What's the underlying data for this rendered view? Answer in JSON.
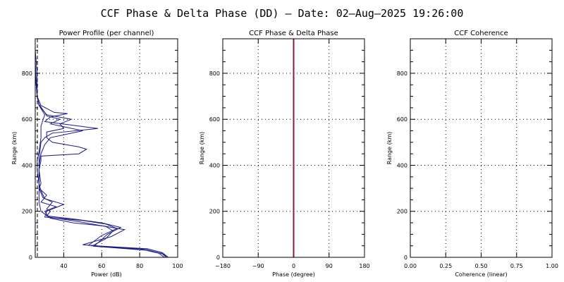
{
  "title": "CCF Phase & Delta Phase (DD) — Date: 02—Aug—2025 19:26:00",
  "colors": {
    "trace": "#1a1a8c",
    "phase_line": "#8b1a3a",
    "grid": "#000000"
  },
  "chart_data": [
    {
      "type": "line",
      "title": "Power Profile (per channel)",
      "xlabel": "Power (dB)",
      "ylabel": "Range (km)",
      "xlim": [
        25,
        100
      ],
      "ylim": [
        0,
        950
      ],
      "xticks": [
        40,
        60,
        80,
        100
      ],
      "yticks": [
        0,
        200,
        400,
        600,
        800
      ],
      "grid": true,
      "series": [
        {
          "values": [
            [
              95,
              0
            ],
            [
              92,
              20
            ],
            [
              85,
              35
            ],
            [
              55,
              50
            ],
            [
              62,
              80
            ],
            [
              66,
              115
            ],
            [
              62,
              135
            ],
            [
              45,
              150
            ],
            [
              33,
              170
            ],
            [
              28,
              200
            ],
            [
              27,
              240
            ],
            [
              27,
              280
            ],
            [
              27,
              320
            ],
            [
              26,
              380
            ],
            [
              26,
              420
            ],
            [
              27,
              460
            ],
            [
              28,
              520
            ],
            [
              28,
              570
            ],
            [
              30,
              620
            ],
            [
              27,
              660
            ],
            [
              26,
              700
            ],
            [
              26,
              800
            ],
            [
              25,
              900
            ],
            [
              25,
              950
            ]
          ]
        },
        {
          "values": [
            [
              93,
              0
            ],
            [
              90,
              18
            ],
            [
              82,
              33
            ],
            [
              50,
              55
            ],
            [
              65,
              90
            ],
            [
              72,
              120
            ],
            [
              58,
              140
            ],
            [
              48,
              155
            ],
            [
              32,
              175
            ],
            [
              30,
              200
            ],
            [
              36,
              220
            ],
            [
              28,
              240
            ],
            [
              31,
              270
            ],
            [
              27,
              300
            ],
            [
              28,
              320
            ],
            [
              27,
              380
            ],
            [
              28,
              420
            ],
            [
              28,
              440
            ],
            [
              48,
              450
            ],
            [
              52,
              470
            ],
            [
              48,
              480
            ],
            [
              34,
              500
            ],
            [
              31,
              520
            ],
            [
              31,
              545
            ],
            [
              40,
              560
            ],
            [
              38,
              580
            ],
            [
              44,
              600
            ],
            [
              31,
              620
            ],
            [
              27,
              660
            ],
            [
              26,
              700
            ],
            [
              25,
              800
            ],
            [
              25,
              950
            ]
          ]
        },
        {
          "values": [
            [
              94,
              0
            ],
            [
              91,
              22
            ],
            [
              84,
              37
            ],
            [
              53,
              52
            ],
            [
              60,
              95
            ],
            [
              68,
              125
            ],
            [
              62,
              145
            ],
            [
              50,
              160
            ],
            [
              30,
              175
            ],
            [
              31,
              200
            ],
            [
              40,
              230
            ],
            [
              30,
              255
            ],
            [
              28,
              290
            ],
            [
              27,
              320
            ],
            [
              27,
              380
            ],
            [
              27,
              430
            ],
            [
              28,
              500
            ],
            [
              30,
              520
            ],
            [
              34,
              540
            ],
            [
              58,
              560
            ],
            [
              44,
              575
            ],
            [
              30,
              590
            ],
            [
              33,
              610
            ],
            [
              42,
              625
            ],
            [
              35,
              630
            ],
            [
              28,
              660
            ],
            [
              26,
              700
            ],
            [
              25,
              850
            ],
            [
              25,
              950
            ]
          ]
        },
        {
          "values": [
            [
              95,
              0
            ],
            [
              92,
              15
            ],
            [
              85,
              30
            ],
            [
              56,
              48
            ],
            [
              63,
              100
            ],
            [
              70,
              130
            ],
            [
              60,
              150
            ],
            [
              47,
              165
            ],
            [
              31,
              180
            ],
            [
              33,
              200
            ],
            [
              31,
              210
            ],
            [
              34,
              240
            ],
            [
              29,
              260
            ],
            [
              27,
              300
            ],
            [
              27,
              350
            ],
            [
              27,
              400
            ],
            [
              28,
              450
            ],
            [
              30,
              490
            ],
            [
              33,
              520
            ],
            [
              50,
              550
            ],
            [
              33,
              580
            ],
            [
              38,
              600
            ],
            [
              31,
              615
            ],
            [
              30,
              630
            ],
            [
              27,
              665
            ],
            [
              26,
              700
            ],
            [
              25,
              800
            ],
            [
              25,
              950
            ]
          ]
        }
      ]
    },
    {
      "type": "line",
      "title": "CCF Phase & Delta Phase",
      "xlabel": "Phase (degree)",
      "ylabel": "Range (km)",
      "xlim": [
        -180,
        180
      ],
      "ylim": [
        0,
        950
      ],
      "xticks": [
        -180,
        -90,
        0,
        90,
        180
      ],
      "yticks": [
        0,
        200,
        400,
        600,
        800
      ],
      "grid": true,
      "series": [
        {
          "values": [
            [
              0,
              0
            ],
            [
              0,
              950
            ]
          ]
        }
      ]
    },
    {
      "type": "line",
      "title": "CCF Coherence",
      "xlabel": "Coherence (linear)",
      "ylabel": "Range (km)",
      "xlim": [
        0,
        1
      ],
      "ylim": [
        0,
        950
      ],
      "xticks": [
        "0.00",
        "0.25",
        "0.50",
        "0.75",
        "1.00"
      ],
      "yticks": [
        0,
        200,
        400,
        600,
        800
      ],
      "grid": true,
      "series": []
    }
  ]
}
